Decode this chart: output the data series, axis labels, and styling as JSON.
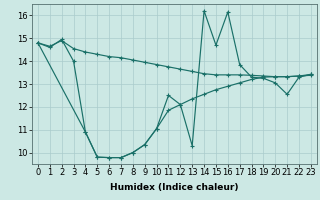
{
  "xlabel": "Humidex (Indice chaleur)",
  "background_color": "#cce8e4",
  "grid_color": "#aacccc",
  "line_color": "#1a7068",
  "xlim": [
    -0.5,
    23.5
  ],
  "ylim": [
    9.5,
    16.5
  ],
  "xticks": [
    0,
    1,
    2,
    3,
    4,
    5,
    6,
    7,
    8,
    9,
    10,
    11,
    12,
    13,
    14,
    15,
    16,
    17,
    18,
    19,
    20,
    21,
    22,
    23
  ],
  "yticks": [
    10,
    11,
    12,
    13,
    14,
    15,
    16
  ],
  "line1_y": [
    14.8,
    14.65,
    14.9,
    14.55,
    14.4,
    14.3,
    14.2,
    14.15,
    14.05,
    13.95,
    13.85,
    13.75,
    13.65,
    13.55,
    13.45,
    13.4,
    13.4,
    13.4,
    13.38,
    13.35,
    13.32,
    13.32,
    13.35,
    13.38
  ],
  "line2_y": [
    14.8,
    14.6,
    14.95,
    14.0,
    10.9,
    9.8,
    9.78,
    9.78,
    10.0,
    10.35,
    11.05,
    12.5,
    12.1,
    10.3,
    16.2,
    14.7,
    16.15,
    13.85,
    13.3,
    13.25,
    13.05,
    12.55,
    13.3,
    13.42
  ],
  "line3_x": [
    0,
    4,
    5,
    6,
    7,
    8,
    9,
    10,
    11,
    12,
    13,
    14,
    15,
    16,
    17,
    18,
    19,
    20,
    21,
    22,
    23
  ],
  "line3_y": [
    14.8,
    10.9,
    9.8,
    9.78,
    9.78,
    10.0,
    10.35,
    11.05,
    11.85,
    12.1,
    12.35,
    12.55,
    12.75,
    12.9,
    13.05,
    13.2,
    13.3,
    13.32,
    13.32,
    13.35,
    13.42
  ],
  "axis_fontsize": 6.5,
  "tick_fontsize": 6.0,
  "linewidth": 0.85,
  "markersize": 2.8
}
